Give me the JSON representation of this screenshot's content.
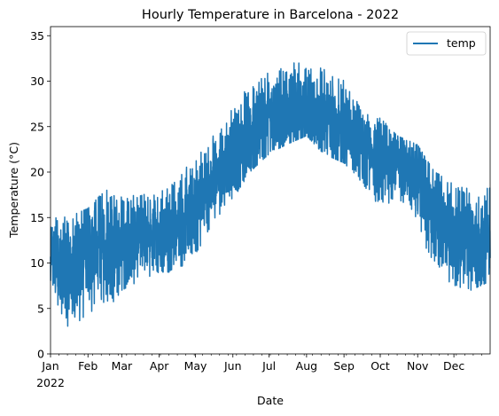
{
  "chart_data": {
    "type": "line",
    "title": "Hourly Temperature in Barcelona - 2022",
    "xlabel": "Date",
    "ylabel": "Temperature (°C)",
    "year_label": "2022",
    "xlim": [
      "2022-01-01",
      "2022-12-31"
    ],
    "ylim": [
      0,
      36
    ],
    "x_ticks": [
      {
        "label": "Jan",
        "date": "2022-01-01"
      },
      {
        "label": "Feb",
        "date": "2022-02-01"
      },
      {
        "label": "Mar",
        "date": "2022-03-01"
      },
      {
        "label": "Apr",
        "date": "2022-04-01"
      },
      {
        "label": "May",
        "date": "2022-05-01"
      },
      {
        "label": "Jun",
        "date": "2022-06-01"
      },
      {
        "label": "Jul",
        "date": "2022-07-01"
      },
      {
        "label": "Aug",
        "date": "2022-08-01"
      },
      {
        "label": "Sep",
        "date": "2022-09-01"
      },
      {
        "label": "Oct",
        "date": "2022-10-01"
      },
      {
        "label": "Nov",
        "date": "2022-11-01"
      },
      {
        "label": "Dec",
        "date": "2022-12-01"
      }
    ],
    "y_ticks": [
      0,
      5,
      10,
      15,
      20,
      25,
      30,
      35
    ],
    "grid": false,
    "legend": {
      "position": "top-right",
      "entries": [
        "temp"
      ]
    },
    "series": [
      {
        "name": "temp",
        "color": "#1f77b4",
        "x": [
          "2022-01-01",
          "2022-01-15",
          "2022-02-01",
          "2022-02-15",
          "2022-03-01",
          "2022-03-15",
          "2022-04-01",
          "2022-04-15",
          "2022-05-01",
          "2022-05-15",
          "2022-06-01",
          "2022-06-15",
          "2022-07-01",
          "2022-07-15",
          "2022-08-01",
          "2022-08-15",
          "2022-09-01",
          "2022-09-15",
          "2022-10-01",
          "2022-10-15",
          "2022-11-01",
          "2022-11-15",
          "2022-12-01",
          "2022-12-15",
          "2022-12-31"
        ],
        "y_min": [
          8,
          2,
          3,
          4,
          7,
          8,
          9,
          9,
          11,
          14,
          17,
          20,
          22,
          23,
          24,
          22,
          21,
          19,
          16,
          16,
          13,
          8,
          7,
          7,
          8
        ],
        "y_mean": [
          11,
          9,
          11,
          12,
          12,
          13,
          13,
          14,
          16,
          19,
          22,
          24,
          26,
          27,
          27,
          26,
          25,
          23,
          21,
          21,
          19,
          15,
          13,
          12,
          12
        ],
        "y_max": [
          17,
          15,
          16,
          18,
          18,
          18,
          19,
          20,
          22,
          24,
          27,
          31,
          33,
          33,
          34,
          33,
          32,
          28,
          26,
          24,
          23,
          20,
          19,
          19,
          20
        ]
      }
    ]
  }
}
